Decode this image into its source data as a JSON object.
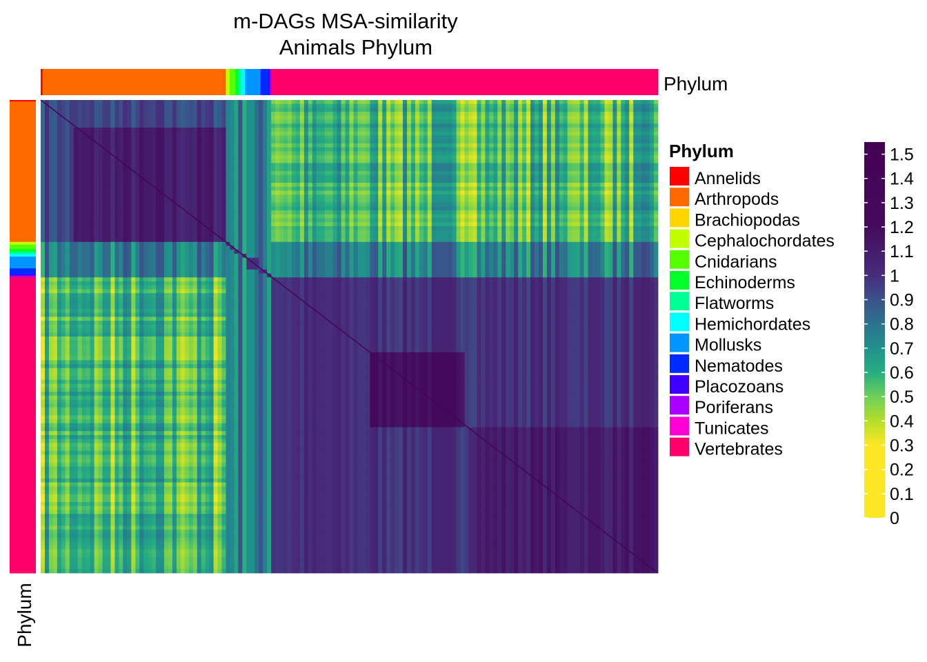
{
  "chart_data": {
    "type": "heatmap",
    "title_lines": [
      "m-DAGs MSA-similarity",
      "Animals Phylum"
    ],
    "annotation_label_top": "Phylum",
    "annotation_label_left": "Phylum",
    "legend": {
      "title": "Phylum",
      "entries": [
        {
          "name": "Annelids",
          "color": "#ff0000"
        },
        {
          "name": "Arthropods",
          "color": "#ff6a00"
        },
        {
          "name": "Brachiopodas",
          "color": "#ffd500"
        },
        {
          "name": "Cephalochordates",
          "color": "#bfff00"
        },
        {
          "name": "Cnidarians",
          "color": "#55ff00"
        },
        {
          "name": "Echinoderms",
          "color": "#00ff2b"
        },
        {
          "name": "Flatworms",
          "color": "#00ff95"
        },
        {
          "name": "Hemichordates",
          "color": "#00ffff"
        },
        {
          "name": "Mollusks",
          "color": "#0095ff"
        },
        {
          "name": "Nematodes",
          "color": "#002bff"
        },
        {
          "name": "Placozoans",
          "color": "#4000ff"
        },
        {
          "name": "Poriferans",
          "color": "#aa00ff"
        },
        {
          "name": "Tunicates",
          "color": "#ff00d4"
        },
        {
          "name": "Vertebrates",
          "color": "#ff006a"
        }
      ]
    },
    "phylum_order": [
      {
        "name": "Annelids",
        "fraction": 0.003
      },
      {
        "name": "Arthropods",
        "fraction": 0.297
      },
      {
        "name": "Cephalochordates",
        "fraction": 0.006
      },
      {
        "name": "Cnidarians",
        "fraction": 0.009
      },
      {
        "name": "Echinoderms",
        "fraction": 0.006
      },
      {
        "name": "Flatworms",
        "fraction": 0.004
      },
      {
        "name": "Hemichordates",
        "fraction": 0.006
      },
      {
        "name": "Mollusks",
        "fraction": 0.025
      },
      {
        "name": "Nematodes",
        "fraction": 0.013
      },
      {
        "name": "Placozoans",
        "fraction": 0.002
      },
      {
        "name": "Poriferans",
        "fraction": 0.003
      },
      {
        "name": "Vertebrates",
        "fraction": 0.626
      }
    ],
    "colorbar": {
      "range": [
        0,
        1.55
      ],
      "ticks": [
        "1.5",
        "1.4",
        "1.3",
        "1.2",
        "1.1",
        "1",
        "0.9",
        "0.8",
        "0.7",
        "0.6",
        "0.5",
        "0.4",
        "0.3",
        "0.2",
        "0.1",
        "0"
      ],
      "stops": [
        {
          "value": 0.0,
          "color": "#fde725"
        },
        {
          "value": 0.3,
          "color": "#fde725"
        },
        {
          "value": 0.4,
          "color": "#b5de2b"
        },
        {
          "value": 0.5,
          "color": "#6ece58"
        },
        {
          "value": 0.6,
          "color": "#26ad81"
        },
        {
          "value": 0.7,
          "color": "#21918c"
        },
        {
          "value": 0.8,
          "color": "#2c728e"
        },
        {
          "value": 0.9,
          "color": "#3b528b"
        },
        {
          "value": 1.0,
          "color": "#472d7b"
        },
        {
          "value": 1.2,
          "color": "#450a5c"
        },
        {
          "value": 1.55,
          "color": "#440154"
        }
      ]
    },
    "block_means": {
      "arthropods_within": 1.0,
      "vertebrates_within": 1.05,
      "arthropods_vs_vertebrates": 0.55,
      "small_phyla_rows": 0.75
    }
  }
}
